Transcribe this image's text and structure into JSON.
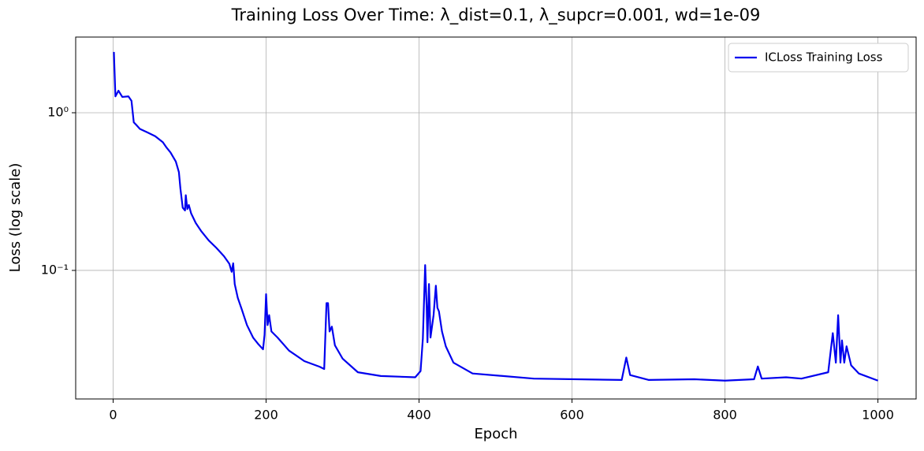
{
  "chart_data": {
    "type": "line",
    "title": "Training Loss Over Time: λ_dist=0.1, λ_supcr=0.001, wd=1e-09",
    "xlabel": "Epoch",
    "ylabel": "Loss (log scale)",
    "yscale": "log",
    "grid": true,
    "legend": "upper right",
    "xlim": [
      -48.95,
      1049.95
    ],
    "xticks": [
      0,
      200,
      400,
      600,
      800,
      1000
    ],
    "ylim": [
      0.0153,
      3.02
    ],
    "yticks": [
      {
        "value": 1,
        "label": "10⁰"
      },
      {
        "value": 0.1,
        "label": "10⁻¹"
      }
    ],
    "series": [
      {
        "name": "ICLoss Training Loss",
        "color": "#0000ee",
        "x": [
          1,
          3,
          7,
          12,
          20,
          24,
          27,
          30,
          35,
          45,
          55,
          65,
          70,
          75,
          82,
          86,
          88,
          91,
          94,
          95,
          97,
          99,
          102,
          108,
          115,
          125,
          135,
          145,
          152,
          155,
          157,
          159,
          163,
          168,
          175,
          183,
          190,
          196,
          198,
          200,
          202,
          204,
          207,
          215,
          230,
          250,
          270,
          276,
          279,
          281,
          283,
          286,
          290,
          300,
          320,
          350,
          395,
          402,
          405,
          408,
          410,
          411,
          413,
          415,
          419,
          422,
          424,
          426,
          430,
          435,
          445,
          470,
          550,
          665,
          671,
          676,
          700,
          760,
          800,
          838,
          843,
          848,
          880,
          900,
          935,
          941,
          945,
          948,
          951,
          953,
          956,
          959,
          965,
          975,
          1000
        ],
        "values": [
          2.43,
          1.27,
          1.38,
          1.26,
          1.27,
          1.19,
          0.87,
          0.84,
          0.79,
          0.75,
          0.71,
          0.65,
          0.6,
          0.56,
          0.49,
          0.42,
          0.33,
          0.25,
          0.24,
          0.3,
          0.245,
          0.26,
          0.23,
          0.2,
          0.178,
          0.155,
          0.139,
          0.123,
          0.11,
          0.098,
          0.111,
          0.082,
          0.067,
          0.057,
          0.045,
          0.0375,
          0.034,
          0.0316,
          0.039,
          0.0707,
          0.045,
          0.052,
          0.041,
          0.0375,
          0.031,
          0.0266,
          0.0245,
          0.0237,
          0.062,
          0.062,
          0.041,
          0.044,
          0.0335,
          0.0276,
          0.0226,
          0.0214,
          0.021,
          0.023,
          0.037,
          0.108,
          0.058,
          0.035,
          0.082,
          0.0375,
          0.052,
          0.08,
          0.058,
          0.055,
          0.041,
          0.033,
          0.026,
          0.0222,
          0.0206,
          0.0202,
          0.028,
          0.0217,
          0.0202,
          0.0204,
          0.02,
          0.0204,
          0.0246,
          0.0206,
          0.021,
          0.0206,
          0.0226,
          0.04,
          0.026,
          0.052,
          0.026,
          0.036,
          0.026,
          0.033,
          0.025,
          0.0222,
          0.02
        ]
      }
    ]
  }
}
